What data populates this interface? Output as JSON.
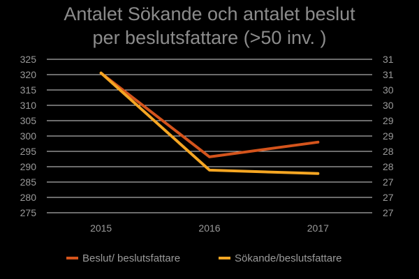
{
  "chart_data": {
    "type": "line",
    "title_lines": [
      "Antalet Sökande och antalet beslut",
      "per beslutsfattare (>50 inv. )"
    ],
    "categories": [
      "2015",
      "2016",
      "2017"
    ],
    "left_axis": {
      "ylim": [
        275,
        325
      ],
      "ticks": [
        "325",
        "320",
        "315",
        "310",
        "305",
        "300",
        "295",
        "290",
        "285",
        "280",
        "275"
      ]
    },
    "right_axis": {
      "ylim": [
        27,
        31.5
      ],
      "ticks": [
        "31",
        "31",
        "30",
        "30",
        "29",
        "29",
        "28",
        "28",
        "27",
        "27",
        "27"
      ]
    },
    "series": [
      {
        "name": "Beslut/ beslutsfattare",
        "axis": "left",
        "color": "#d4541c",
        "values": [
          320.5,
          293.2,
          298.0
        ]
      },
      {
        "name": "Sökande/beslutsfattare",
        "axis": "right",
        "color": "#f5a623",
        "values": [
          31.1,
          28.25,
          28.15
        ]
      }
    ],
    "grid": true,
    "legend": "bottom"
  }
}
